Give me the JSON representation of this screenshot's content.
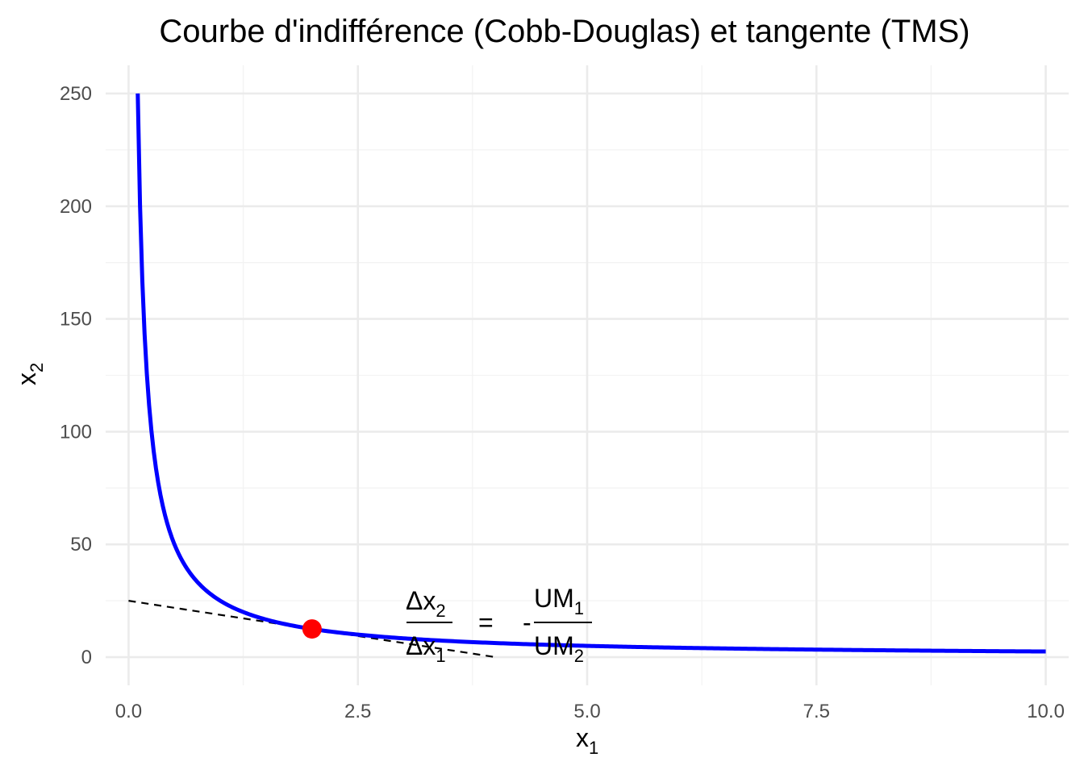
{
  "chart_data": {
    "type": "line",
    "title": "Courbe d'indifférence (Cobb-Douglas) et tangente (TMS)",
    "xlabel": {
      "base": "x",
      "sub": "1"
    },
    "ylabel": {
      "base": "x",
      "sub": "2"
    },
    "xlim": [
      -0.25,
      10.25
    ],
    "ylim": [
      -12.5,
      262.5
    ],
    "x_ticks": [
      0,
      2.5,
      5,
      7.5,
      10
    ],
    "x_tick_labels": [
      "0.0",
      "2.5",
      "5.0",
      "7.5",
      "10.0"
    ],
    "y_ticks": [
      0,
      50,
      100,
      150,
      200,
      250
    ],
    "y_tick_labels": [
      "0",
      "50",
      "100",
      "150",
      "200",
      "250"
    ],
    "grid": true,
    "legend": "none",
    "series": [
      {
        "kind": "curve",
        "formula": "x2 = 25 / x1",
        "x_range": [
          0.1,
          10
        ],
        "color": "#0000ff"
      },
      {
        "kind": "tangent",
        "formula": "x2 = 25 - 6.25 * x1",
        "x_range": [
          0,
          4
        ],
        "color": "#000000",
        "dash": true
      }
    ],
    "points": [
      {
        "x": 2,
        "y": 12.5,
        "color": "#ff0000"
      }
    ],
    "annotation": {
      "lhs_num": {
        "delta": "Δ",
        "base": "x",
        "sub": "2"
      },
      "lhs_den": {
        "delta": "Δ",
        "base": "x",
        "sub": "1"
      },
      "equals": "=",
      "minus": "-",
      "rhs_num": {
        "base": "UM",
        "sub": "1"
      },
      "rhs_den": {
        "base": "UM",
        "sub": "2"
      }
    }
  }
}
